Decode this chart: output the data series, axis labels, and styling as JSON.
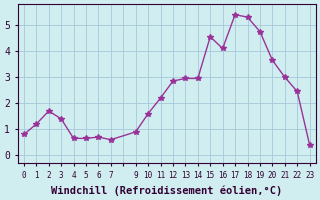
{
  "x": [
    0,
    1,
    2,
    3,
    4,
    5,
    6,
    7,
    9,
    10,
    11,
    12,
    13,
    14,
    15,
    16,
    17,
    18,
    19,
    20,
    21,
    22,
    23
  ],
  "y": [
    0.8,
    1.2,
    1.7,
    1.4,
    0.65,
    0.65,
    0.7,
    0.6,
    0.9,
    1.6,
    2.2,
    2.85,
    2.95,
    2.95,
    4.55,
    4.1,
    5.4,
    5.3,
    4.75,
    3.65,
    3.0,
    2.45,
    0.4
  ],
  "line_color": "#993399",
  "marker": "*",
  "marker_size": 4,
  "xlabel": "Windchill (Refroidissement éolien,°C)",
  "xlabel_fontsize": 7.5,
  "ylabel_ticks": [
    0,
    1,
    2,
    3,
    4,
    5
  ],
  "ylim": [
    -0.3,
    5.8
  ],
  "xlim": [
    -0.5,
    23.5
  ],
  "bg_color": "#d0eef0",
  "grid_color": "#aaccdd"
}
